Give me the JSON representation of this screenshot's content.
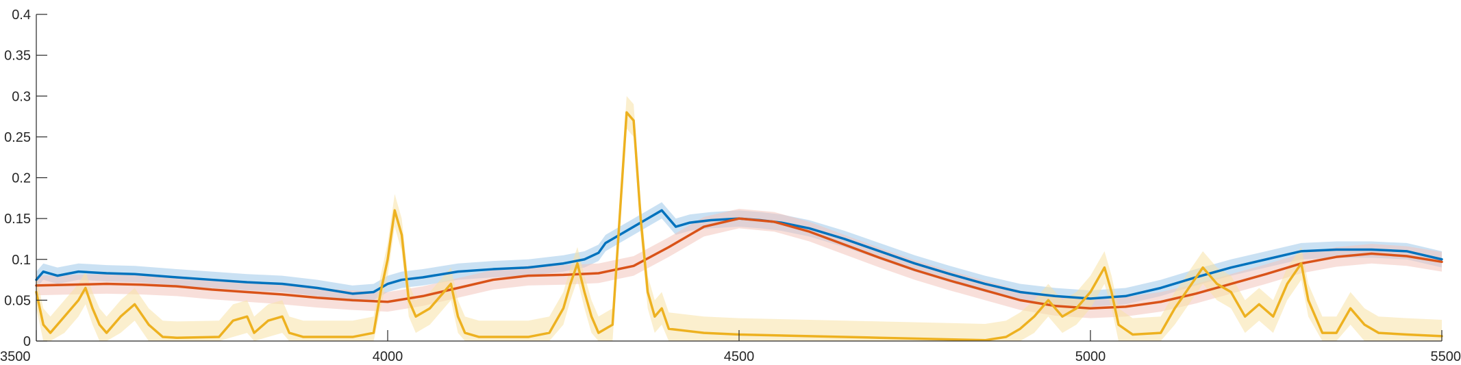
{
  "chart_data": {
    "type": "line",
    "title": "",
    "xlabel": "",
    "ylabel": "",
    "xlim": [
      3500,
      5500
    ],
    "ylim": [
      0,
      0.4
    ],
    "grid": false,
    "legend": "none",
    "x_ticks": [
      "3500",
      "4000",
      "4500",
      "5000",
      "5500"
    ],
    "y_ticks": [
      "0",
      "0.05",
      "0.1",
      "0.15",
      "0.2",
      "0.25",
      "0.3",
      "0.35",
      "0.4"
    ],
    "series": [
      {
        "color": "#0072BD",
        "band_color": "#9ec9ea",
        "band_halfwidth": 0.01,
        "points": [
          [
            3500,
            0.075
          ],
          [
            3510,
            0.085
          ],
          [
            3530,
            0.08
          ],
          [
            3560,
            0.085
          ],
          [
            3600,
            0.083
          ],
          [
            3640,
            0.082
          ],
          [
            3700,
            0.078
          ],
          [
            3750,
            0.075
          ],
          [
            3800,
            0.072
          ],
          [
            3850,
            0.07
          ],
          [
            3900,
            0.065
          ],
          [
            3950,
            0.058
          ],
          [
            3980,
            0.06
          ],
          [
            4000,
            0.07
          ],
          [
            4020,
            0.075
          ],
          [
            4050,
            0.078
          ],
          [
            4100,
            0.085
          ],
          [
            4150,
            0.088
          ],
          [
            4200,
            0.09
          ],
          [
            4250,
            0.095
          ],
          [
            4280,
            0.1
          ],
          [
            4300,
            0.108
          ],
          [
            4310,
            0.12
          ],
          [
            4330,
            0.13
          ],
          [
            4350,
            0.14
          ],
          [
            4370,
            0.15
          ],
          [
            4390,
            0.16
          ],
          [
            4410,
            0.14
          ],
          [
            4430,
            0.145
          ],
          [
            4460,
            0.148
          ],
          [
            4500,
            0.15
          ],
          [
            4530,
            0.148
          ],
          [
            4560,
            0.145
          ],
          [
            4600,
            0.138
          ],
          [
            4650,
            0.125
          ],
          [
            4700,
            0.11
          ],
          [
            4750,
            0.095
          ],
          [
            4800,
            0.082
          ],
          [
            4850,
            0.07
          ],
          [
            4900,
            0.06
          ],
          [
            4950,
            0.055
          ],
          [
            5000,
            0.052
          ],
          [
            5050,
            0.055
          ],
          [
            5100,
            0.065
          ],
          [
            5150,
            0.078
          ],
          [
            5200,
            0.09
          ],
          [
            5250,
            0.1
          ],
          [
            5300,
            0.11
          ],
          [
            5350,
            0.112
          ],
          [
            5400,
            0.112
          ],
          [
            5450,
            0.11
          ],
          [
            5500,
            0.1
          ]
        ]
      },
      {
        "color": "#D95319",
        "band_color": "#f2c4bb",
        "band_halfwidth": 0.012,
        "points": [
          [
            3500,
            0.068
          ],
          [
            3550,
            0.069
          ],
          [
            3600,
            0.07
          ],
          [
            3650,
            0.069
          ],
          [
            3700,
            0.067
          ],
          [
            3750,
            0.063
          ],
          [
            3800,
            0.06
          ],
          [
            3850,
            0.057
          ],
          [
            3900,
            0.053
          ],
          [
            3950,
            0.05
          ],
          [
            4000,
            0.048
          ],
          [
            4050,
            0.055
          ],
          [
            4100,
            0.065
          ],
          [
            4150,
            0.075
          ],
          [
            4200,
            0.08
          ],
          [
            4250,
            0.081
          ],
          [
            4300,
            0.083
          ],
          [
            4350,
            0.092
          ],
          [
            4400,
            0.115
          ],
          [
            4450,
            0.14
          ],
          [
            4500,
            0.15
          ],
          [
            4550,
            0.146
          ],
          [
            4600,
            0.134
          ],
          [
            4650,
            0.118
          ],
          [
            4700,
            0.102
          ],
          [
            4750,
            0.087
          ],
          [
            4800,
            0.074
          ],
          [
            4850,
            0.062
          ],
          [
            4900,
            0.05
          ],
          [
            4950,
            0.043
          ],
          [
            5000,
            0.04
          ],
          [
            5050,
            0.042
          ],
          [
            5100,
            0.048
          ],
          [
            5150,
            0.058
          ],
          [
            5200,
            0.07
          ],
          [
            5250,
            0.082
          ],
          [
            5300,
            0.095
          ],
          [
            5350,
            0.103
          ],
          [
            5400,
            0.107
          ],
          [
            5450,
            0.104
          ],
          [
            5500,
            0.097
          ]
        ]
      },
      {
        "color": "#EDB120",
        "band_color": "#f7e2a6",
        "band_halfwidth": 0.02,
        "points": [
          [
            3500,
            0.06
          ],
          [
            3510,
            0.02
          ],
          [
            3520,
            0.01
          ],
          [
            3540,
            0.03
          ],
          [
            3560,
            0.05
          ],
          [
            3570,
            0.065
          ],
          [
            3580,
            0.04
          ],
          [
            3590,
            0.02
          ],
          [
            3600,
            0.01
          ],
          [
            3620,
            0.03
          ],
          [
            3640,
            0.045
          ],
          [
            3660,
            0.02
          ],
          [
            3680,
            0.005
          ],
          [
            3700,
            0.004
          ],
          [
            3760,
            0.005
          ],
          [
            3780,
            0.025
          ],
          [
            3800,
            0.03
          ],
          [
            3810,
            0.01
          ],
          [
            3830,
            0.025
          ],
          [
            3850,
            0.03
          ],
          [
            3860,
            0.01
          ],
          [
            3880,
            0.005
          ],
          [
            3950,
            0.005
          ],
          [
            3980,
            0.01
          ],
          [
            3990,
            0.06
          ],
          [
            4000,
            0.1
          ],
          [
            4010,
            0.16
          ],
          [
            4020,
            0.13
          ],
          [
            4030,
            0.05
          ],
          [
            4040,
            0.03
          ],
          [
            4060,
            0.04
          ],
          [
            4080,
            0.06
          ],
          [
            4090,
            0.07
          ],
          [
            4100,
            0.03
          ],
          [
            4110,
            0.01
          ],
          [
            4130,
            0.005
          ],
          [
            4200,
            0.005
          ],
          [
            4230,
            0.01
          ],
          [
            4250,
            0.04
          ],
          [
            4260,
            0.07
          ],
          [
            4270,
            0.095
          ],
          [
            4280,
            0.06
          ],
          [
            4290,
            0.03
          ],
          [
            4300,
            0.01
          ],
          [
            4320,
            0.02
          ],
          [
            4330,
            0.15
          ],
          [
            4340,
            0.28
          ],
          [
            4350,
            0.27
          ],
          [
            4360,
            0.15
          ],
          [
            4370,
            0.06
          ],
          [
            4380,
            0.03
          ],
          [
            4390,
            0.04
          ],
          [
            4400,
            0.015
          ],
          [
            4450,
            0.01
          ],
          [
            4500,
            0.008
          ],
          [
            4600,
            0.006
          ],
          [
            4700,
            0.004
          ],
          [
            4800,
            0.002
          ],
          [
            4850,
            0.001
          ],
          [
            4880,
            0.005
          ],
          [
            4900,
            0.015
          ],
          [
            4920,
            0.03
          ],
          [
            4940,
            0.05
          ],
          [
            4960,
            0.03
          ],
          [
            4980,
            0.04
          ],
          [
            5000,
            0.06
          ],
          [
            5020,
            0.09
          ],
          [
            5030,
            0.06
          ],
          [
            5040,
            0.02
          ],
          [
            5060,
            0.008
          ],
          [
            5100,
            0.01
          ],
          [
            5120,
            0.04
          ],
          [
            5140,
            0.065
          ],
          [
            5160,
            0.09
          ],
          [
            5180,
            0.07
          ],
          [
            5200,
            0.06
          ],
          [
            5220,
            0.03
          ],
          [
            5240,
            0.045
          ],
          [
            5260,
            0.03
          ],
          [
            5280,
            0.07
          ],
          [
            5300,
            0.095
          ],
          [
            5310,
            0.05
          ],
          [
            5330,
            0.01
          ],
          [
            5350,
            0.01
          ],
          [
            5370,
            0.04
          ],
          [
            5390,
            0.02
          ],
          [
            5410,
            0.01
          ],
          [
            5450,
            0.008
          ],
          [
            5500,
            0.006
          ]
        ]
      }
    ]
  }
}
